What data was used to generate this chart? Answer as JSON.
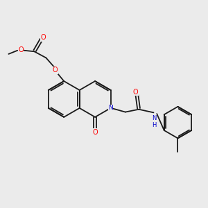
{
  "bg_color": "#ebebeb",
  "bond_color": "#1a1a1a",
  "atom_O": "#ff0000",
  "atom_N": "#0000cc",
  "bond_width": 1.3,
  "fig_width": 3.0,
  "fig_height": 3.0,
  "dpi": 100,
  "xlim": [
    0,
    10
  ],
  "ylim": [
    0,
    10
  ]
}
